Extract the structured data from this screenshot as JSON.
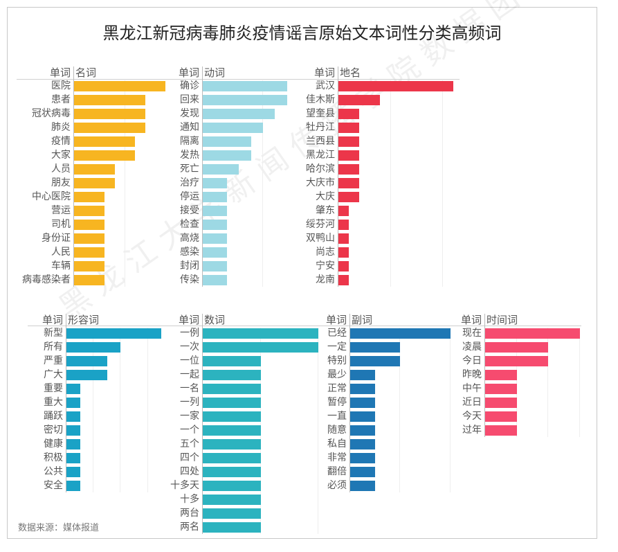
{
  "chart_data": {
    "title": "黑龙江新冠病毒肺炎疫情谣言原始文本词性分类高频词",
    "source": "数据来源：媒体报道",
    "watermark": "黑龙江大学新闻传播学院数据团队",
    "type": "bar",
    "orientation": "horizontal",
    "word_header": "单词",
    "panels": [
      {
        "category": "名词",
        "color": "#F7B521",
        "categories": [
          "医院",
          "患者",
          "冠状病毒",
          "肺炎",
          "疫情",
          "大家",
          "人员",
          "朋友",
          "中心医院",
          "营运",
          "司机",
          "身份证",
          "人民",
          "车辆",
          "病毒感染者"
        ],
        "values": [
          9,
          7,
          7,
          7,
          6,
          6,
          4,
          4,
          3,
          3,
          3,
          3,
          3,
          3,
          3
        ]
      },
      {
        "category": "动词",
        "color": "#9DD9E4",
        "categories": [
          "确诊",
          "回来",
          "发现",
          "通知",
          "隔离",
          "发热",
          "死亡",
          "治疗",
          "停运",
          "接受",
          "检查",
          "高烧",
          "感染",
          "封闭",
          "传染"
        ],
        "values": [
          7,
          7,
          6,
          5,
          4,
          4,
          3,
          2,
          2,
          2,
          2,
          2,
          2,
          2,
          2
        ]
      },
      {
        "category": "地名",
        "color": "#EC364A",
        "categories": [
          "武汉",
          "佳木斯",
          "望奎县",
          "牡丹江",
          "兰西县",
          "黑龙江",
          "哈尔滨",
          "大庆市",
          "大庆",
          "肇东",
          "绥芬河",
          "双鸭山",
          "尚志",
          "宁安",
          "龙南"
        ],
        "values": [
          11,
          4,
          2,
          2,
          2,
          2,
          2,
          2,
          2,
          1,
          1,
          1,
          1,
          1,
          1
        ]
      },
      {
        "category": "形容词",
        "color": "#1AA2C6",
        "categories": [
          "新型",
          "所有",
          "严重",
          "广大",
          "重要",
          "重大",
          "踊跃",
          "密切",
          "健康",
          "积极",
          "公共",
          "安全"
        ],
        "values": [
          7,
          4,
          3,
          3,
          1,
          1,
          1,
          1,
          1,
          1,
          1,
          1
        ]
      },
      {
        "category": "数词",
        "color": "#2CB3BF",
        "categories": [
          "一例",
          "一次",
          "一位",
          "一起",
          "一名",
          "一列",
          "一家",
          "一个",
          "五个",
          "四个",
          "四处",
          "十多天",
          "十多",
          "两台",
          "两名"
        ],
        "values": [
          2,
          2,
          1,
          1,
          1,
          1,
          1,
          1,
          1,
          1,
          1,
          1,
          1,
          1,
          1
        ]
      },
      {
        "category": "副词",
        "color": "#1F77B4",
        "categories": [
          "已经",
          "一定",
          "特别",
          "最少",
          "正常",
          "暂停",
          "一直",
          "随意",
          "私自",
          "非常",
          "翻倍",
          "必须"
        ],
        "values": [
          4,
          2,
          2,
          1,
          1,
          1,
          1,
          1,
          1,
          1,
          1,
          1
        ]
      },
      {
        "category": "时间词",
        "color": "#F64B6F",
        "categories": [
          "现在",
          "凌晨",
          "今日",
          "昨晚",
          "中午",
          "近日",
          "今天",
          "过年"
        ],
        "values": [
          3,
          2,
          2,
          1,
          1,
          1,
          1,
          1
        ]
      }
    ]
  }
}
